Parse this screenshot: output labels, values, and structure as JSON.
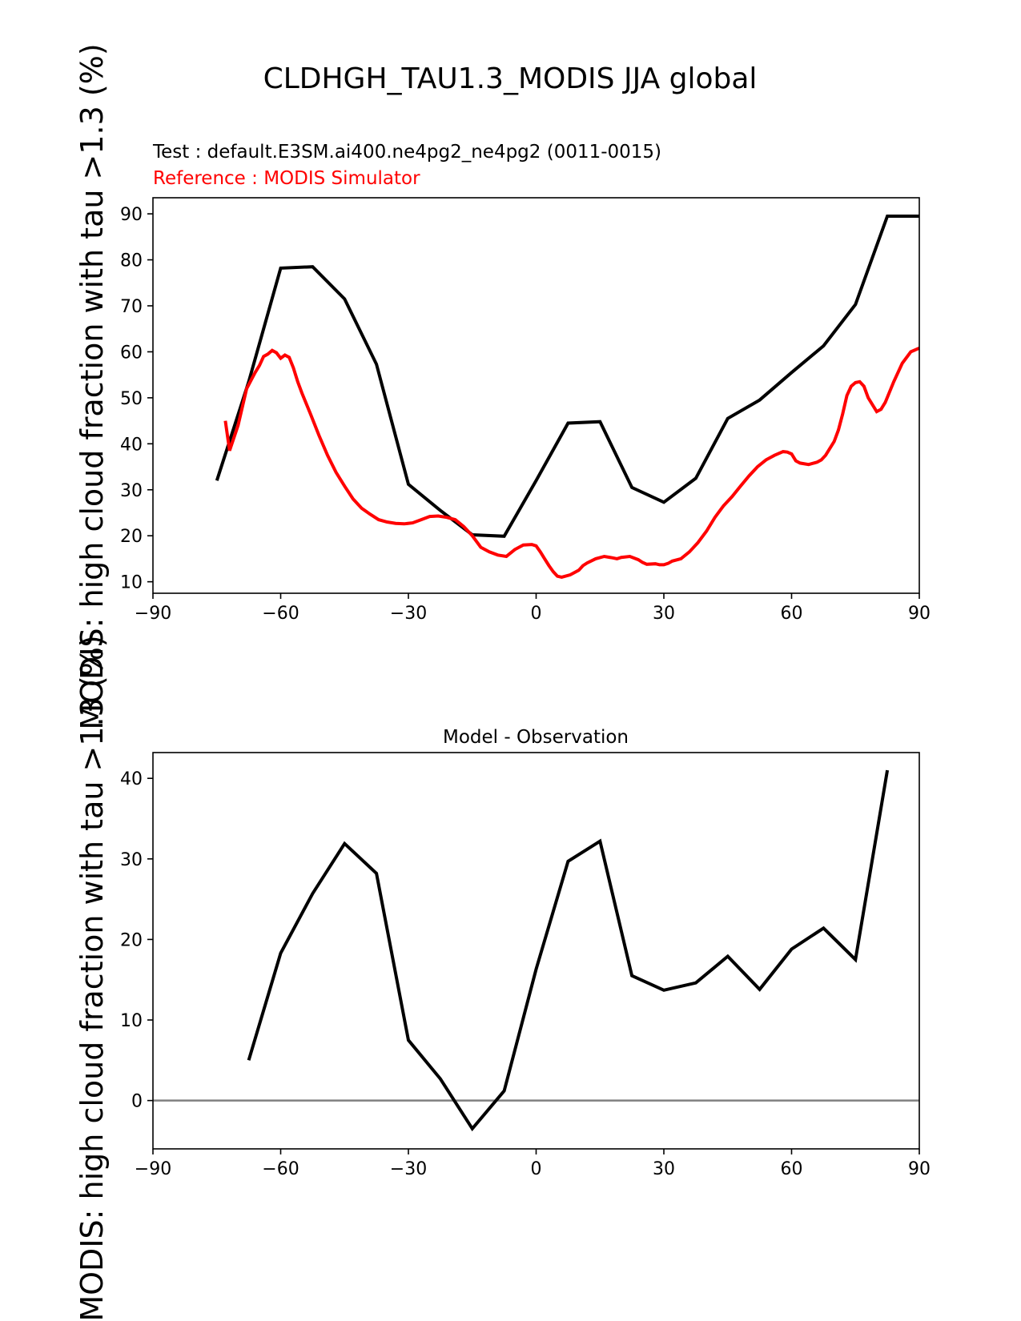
{
  "title": "CLDHGH_TAU1.3_MODIS JJA global",
  "chart_data": [
    {
      "type": "line",
      "test_label": "Test : default.E3SM.ai400.ne4pg2_ne4pg2 (0011-0015)",
      "reference_label": "Reference : MODIS Simulator",
      "ylabel": "MODIS: high cloud fraction with tau >1.3 (%)",
      "xlim": [
        -90,
        90
      ],
      "ylim": [
        7.5,
        93.5
      ],
      "xticks": [
        -90,
        -60,
        -30,
        0,
        30,
        60,
        90
      ],
      "xtick_labels": [
        "−90",
        "−60",
        "−30",
        "0",
        "30",
        "60",
        "90"
      ],
      "yticks": [
        10,
        20,
        30,
        40,
        50,
        60,
        70,
        80,
        90
      ],
      "yticks_labels": [
        "10",
        "20",
        "30",
        "40",
        "50",
        "60",
        "70",
        "80",
        "90"
      ],
      "colors": {
        "test": "#000000",
        "reference": "#ff0000"
      },
      "series": [
        {
          "role": "test",
          "x": [
            -75,
            -67.5,
            -60,
            -52.5,
            -45,
            -37.5,
            -30,
            -22.5,
            -15,
            -7.5,
            0,
            7.5,
            15,
            22.5,
            30,
            37.5,
            45,
            52.5,
            60,
            67.5,
            75,
            82.5,
            90
          ],
          "y": [
            32,
            53.5,
            78.2,
            78.5,
            71.5,
            57.3,
            31.2,
            25.5,
            20.2,
            19.9,
            32,
            44.5,
            44.8,
            30.5,
            27.3,
            32.5,
            45.5,
            49.5,
            55.5,
            61.3,
            70.3,
            89.5,
            89.5
          ]
        },
        {
          "role": "reference",
          "x": [
            -73,
            -72,
            -70,
            -68,
            -66,
            -65,
            -64,
            -63,
            -62,
            -61,
            -60,
            -59,
            -58,
            -57,
            -56,
            -55,
            -53,
            -51,
            -49,
            -47,
            -45,
            -43,
            -41,
            -39,
            -37,
            -35,
            -33,
            -31,
            -29,
            -27,
            -25,
            -23,
            -21,
            -19,
            -17,
            -15,
            -13,
            -11,
            -9,
            -7,
            -5,
            -3,
            -1,
            0,
            1,
            2,
            3,
            4,
            5,
            6,
            8,
            10,
            11,
            12,
            14,
            16,
            18,
            19,
            20,
            22,
            24,
            25,
            26,
            28,
            29,
            30,
            31,
            32,
            34,
            36,
            38,
            40,
            42,
            44,
            46,
            48,
            50,
            52,
            54,
            56,
            58,
            59,
            60,
            61,
            62,
            64,
            66,
            67,
            68,
            70,
            71,
            72,
            73,
            74,
            75,
            76,
            77,
            78,
            80,
            81,
            82,
            84,
            86,
            88,
            90
          ],
          "y": [
            45,
            38.5,
            44,
            52,
            55.5,
            57,
            59,
            59.5,
            60.3,
            59.8,
            58.6,
            59.3,
            58.8,
            56.5,
            53.5,
            51,
            46.5,
            41.8,
            37.5,
            33.8,
            30.8,
            28,
            26,
            24.7,
            23.5,
            23,
            22.7,
            22.6,
            22.8,
            23.5,
            24.2,
            24.3,
            24,
            23.5,
            22,
            20,
            17.5,
            16.5,
            15.8,
            15.5,
            17,
            18,
            18.1,
            17.8,
            16.5,
            15,
            13.5,
            12.2,
            11.2,
            11,
            11.5,
            12.5,
            13.5,
            14.1,
            15,
            15.5,
            15.2,
            15,
            15.3,
            15.5,
            14.8,
            14.2,
            13.8,
            13.9,
            13.7,
            13.7,
            14,
            14.5,
            15,
            16.5,
            18.5,
            21,
            24,
            26.5,
            28.5,
            30.8,
            33,
            35,
            36.5,
            37.5,
            38.3,
            38.2,
            37.8,
            36.3,
            35.8,
            35.5,
            36,
            36.5,
            37.5,
            40.5,
            43,
            46.5,
            50.5,
            52.5,
            53.3,
            53.5,
            52.5,
            50,
            47,
            47.5,
            49,
            53.5,
            57.5,
            60,
            60.8
          ]
        }
      ]
    },
    {
      "type": "line",
      "title": "Model - Observation",
      "ylabel": "MODIS: high cloud fraction with tau >1.3 (%)",
      "xlim": [
        -90,
        90
      ],
      "ylim": [
        -6,
        43.2
      ],
      "xticks": [
        -90,
        -60,
        -30,
        0,
        30,
        60,
        90
      ],
      "xtick_labels": [
        "−90",
        "−60",
        "−30",
        "0",
        "30",
        "60",
        "90"
      ],
      "yticks": [
        0,
        10,
        20,
        30,
        40
      ],
      "yticks_labels": [
        "0",
        "10",
        "20",
        "30",
        "40"
      ],
      "zero_line_color": "#808080",
      "colors": {
        "difference": "#000000"
      },
      "series": [
        {
          "role": "difference",
          "x": [
            -67.5,
            -60,
            -52.5,
            -45,
            -37.5,
            -30,
            -22.5,
            -15,
            -7.5,
            0,
            7.5,
            15,
            22.5,
            30,
            37.5,
            45,
            52.5,
            60,
            67.5,
            75,
            82.5
          ],
          "y": [
            5,
            18.3,
            25.7,
            31.9,
            28.2,
            7.5,
            2.7,
            -3.5,
            1.2,
            16.3,
            29.7,
            32.2,
            15.5,
            13.7,
            14.6,
            17.9,
            13.8,
            18.8,
            21.4,
            17.5,
            41
          ]
        }
      ]
    }
  ]
}
